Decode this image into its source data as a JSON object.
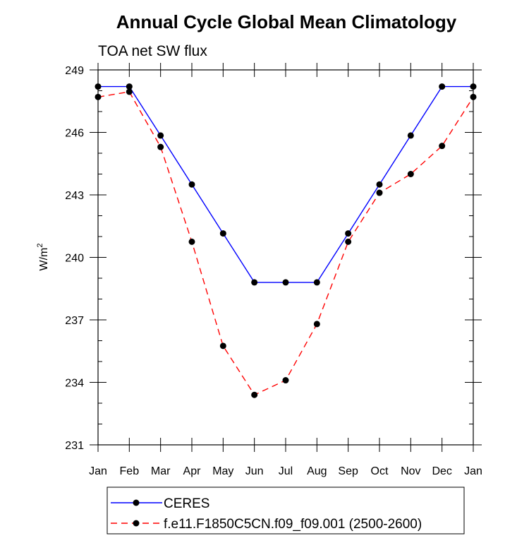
{
  "chart_data": {
    "type": "line",
    "title": "Annual Cycle Global Mean Climatology",
    "subtitle": "TOA net SW flux",
    "xlabel": "",
    "ylabel": "W/m",
    "ylabel_superscript": "2",
    "categories": [
      "Jan",
      "Feb",
      "Mar",
      "Apr",
      "May",
      "Jun",
      "Jul",
      "Aug",
      "Sep",
      "Oct",
      "Nov",
      "Dec",
      "Jan"
    ],
    "ylim": [
      231,
      249
    ],
    "yticks": [
      "231",
      "234",
      "237",
      "240",
      "243",
      "246",
      "249"
    ],
    "series": [
      {
        "name": "CERES",
        "color": "#0000ff",
        "dash": "solid",
        "values": [
          248.2,
          248.2,
          245.85,
          243.5,
          241.15,
          238.8,
          238.8,
          238.8,
          241.15,
          243.5,
          245.85,
          248.2,
          248.2
        ]
      },
      {
        "name": "f.e11.F1850C5CN.f09_f09.001 (2500-2600)",
        "color": "#ff0000",
        "dash": "dashed",
        "values": [
          247.7,
          247.95,
          245.3,
          240.75,
          235.75,
          233.4,
          234.1,
          236.8,
          240.75,
          243.1,
          244.0,
          245.35,
          247.7
        ]
      }
    ],
    "legend_position": "bottom"
  }
}
